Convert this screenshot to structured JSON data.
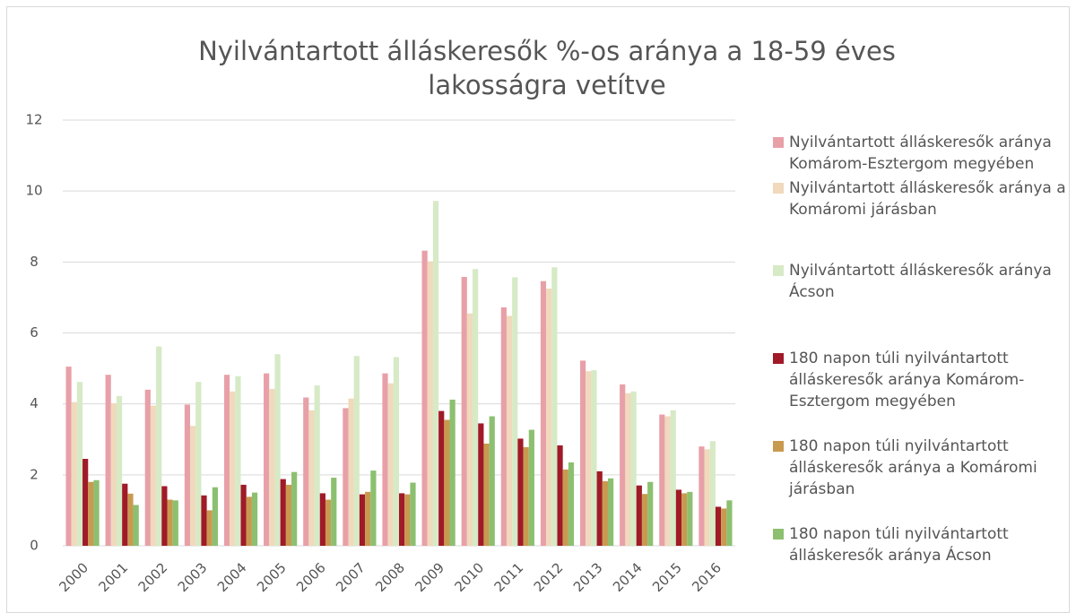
{
  "chart_data": {
    "type": "bar",
    "title": "Nyilvántartott álláskeresők %-os aránya a 18-59 éves lakosságra vetítve",
    "categories": [
      "2000",
      "2001",
      "2002",
      "2003",
      "2004",
      "2005",
      "2006",
      "2007",
      "2008",
      "2009",
      "2010",
      "2011",
      "2012",
      "2013",
      "2014",
      "2015",
      "2016"
    ],
    "series": [
      {
        "name": "Nyilvántartott álláskeresők aránya Komárom-Esztergom megyében",
        "color": "#e8a0a8",
        "values": [
          5.05,
          4.82,
          4.4,
          3.98,
          4.82,
          4.86,
          4.18,
          3.88,
          4.86,
          8.32,
          7.58,
          6.72,
          7.46,
          5.22,
          4.55,
          3.7,
          2.8
        ]
      },
      {
        "name": "Nyilvántartott álláskeresők aránya a Komáromi járásban",
        "color": "#f0d9bc",
        "values": [
          4.05,
          4.02,
          3.95,
          3.38,
          4.35,
          4.42,
          3.82,
          4.15,
          4.58,
          8.02,
          6.55,
          6.48,
          7.25,
          4.92,
          4.3,
          3.65,
          2.72
        ]
      },
      {
        "name": "Nyilvántartott álláskeresők aránya Ácson",
        "color": "#d6eac6",
        "values": [
          4.62,
          4.22,
          5.62,
          4.62,
          4.78,
          5.4,
          4.52,
          5.35,
          5.32,
          9.72,
          7.8,
          7.57,
          7.85,
          4.95,
          4.35,
          3.82,
          2.95
        ]
      },
      {
        "name": "180 napon túli nyilvántartott álláskeresők aránya Komárom-Esztergom megyében",
        "color": "#a01a28",
        "values": [
          2.45,
          1.75,
          1.68,
          1.42,
          1.72,
          1.88,
          1.48,
          1.45,
          1.48,
          3.8,
          3.45,
          3.02,
          2.83,
          2.1,
          1.7,
          1.58,
          1.1
        ]
      },
      {
        "name": "180 napon túli nyilvántartott álláskeresők aránya a Komáromi járásban",
        "color": "#c89a50",
        "values": [
          1.8,
          1.47,
          1.3,
          1.0,
          1.38,
          1.72,
          1.3,
          1.52,
          1.45,
          3.55,
          2.88,
          2.78,
          2.15,
          1.82,
          1.46,
          1.48,
          1.05
        ]
      },
      {
        "name": "180 napon túli nyilvántartott álláskeresők aránya Ácson",
        "color": "#8cc070",
        "values": [
          1.85,
          1.15,
          1.28,
          1.65,
          1.5,
          2.08,
          1.92,
          2.12,
          1.78,
          4.12,
          3.65,
          3.27,
          2.35,
          1.9,
          1.8,
          1.52,
          1.28
        ]
      }
    ],
    "ylim": [
      0,
      12
    ],
    "yticks": [
      0,
      2,
      4,
      6,
      8,
      10,
      12
    ],
    "grid": true,
    "legend": "right"
  }
}
